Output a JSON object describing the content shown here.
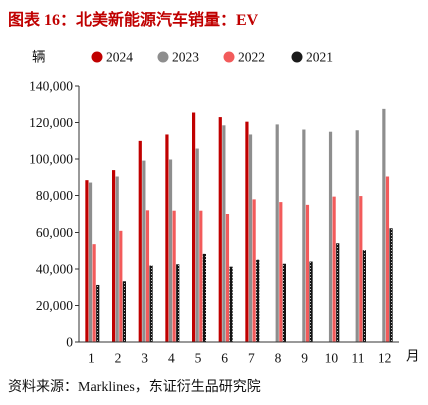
{
  "chart_data": {
    "type": "bar",
    "title": "图表 16：北美新能源汽车销量：EV",
    "ylabel": "辆",
    "xlabel": "月",
    "categories": [
      "1",
      "2",
      "3",
      "4",
      "5",
      "6",
      "7",
      "8",
      "9",
      "10",
      "11",
      "12"
    ],
    "ylim": [
      0,
      140000
    ],
    "yticks": [
      0,
      20000,
      40000,
      60000,
      80000,
      100000,
      120000,
      140000
    ],
    "ytick_labels": [
      "0",
      "20,000",
      "40,000",
      "60,000",
      "80,000",
      "100,000",
      "120,000",
      "140,000"
    ],
    "grid": false,
    "legend_position": "top",
    "series": [
      {
        "name": "2024",
        "color": "#C00000",
        "values": [
          88500,
          94000,
          110000,
          113500,
          125500,
          123000,
          120500,
          null,
          null,
          null,
          null,
          null
        ]
      },
      {
        "name": "2023",
        "color": "#8E8E8E",
        "values": [
          87200,
          90500,
          99200,
          99800,
          105800,
          118500,
          113500,
          119000,
          116200,
          115000,
          115800,
          127500
        ]
      },
      {
        "name": "2022",
        "color": "#F25B5B",
        "values": [
          53500,
          60800,
          72000,
          71800,
          71800,
          70000,
          78000,
          76500,
          75000,
          79500,
          79800,
          90500
        ]
      },
      {
        "name": "2021",
        "color": "#1A1A1A",
        "fill_pattern": "dotted",
        "values": [
          31200,
          33200,
          41800,
          42500,
          48200,
          41200,
          45000,
          42800,
          44000,
          54000,
          50200,
          62200
        ]
      }
    ]
  },
  "source": "资料来源：Marklines，东证衍生品研究院"
}
